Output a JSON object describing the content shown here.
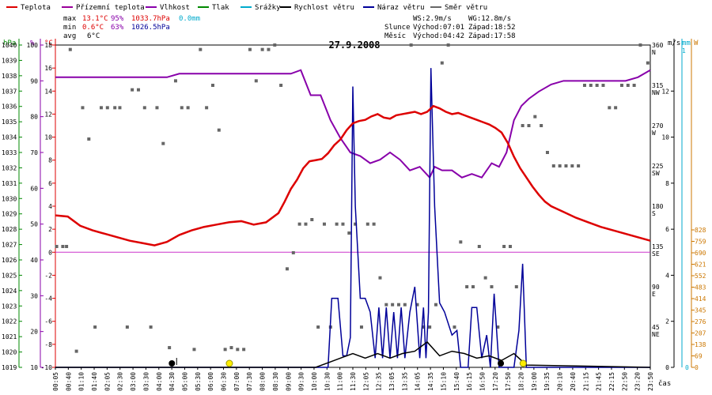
{
  "legend": [
    {
      "label": "Teplota",
      "color": "#dd0000"
    },
    {
      "label": "Přízemní teplota",
      "color": "#990099"
    },
    {
      "label": "Vlhkost",
      "color": "#8800aa"
    },
    {
      "label": "Tlak",
      "color": "#008800"
    },
    {
      "label": "Srážky",
      "color": "#00aacc"
    },
    {
      "label": "Rychlost větru",
      "color": "#000000"
    },
    {
      "label": "Náraz větru",
      "color": "#000099"
    },
    {
      "label": "Směr větru",
      "color": "#666666"
    }
  ],
  "stats": {
    "max_label": "max",
    "max_temp": "13.1°C",
    "max_hum": "95%",
    "max_press": "1033.7hPa",
    "max_rain": "0.0mm",
    "min_label": "min",
    "min_temp": "0.6°C",
    "min_hum": "63%",
    "min_press": "1026.5hPa",
    "avg_label": "avg",
    "avg_temp": "6°C"
  },
  "wind_info": {
    "ws": "WS:2.9m/s",
    "wg": "WG:12.8m/s"
  },
  "sun": {
    "label": "Slunce",
    "rise": "Východ:07:01",
    "set": "Západ:18:52"
  },
  "moon": {
    "label": "Měsíc",
    "rise": "Východ:04:42",
    "set": "Západ:17:58"
  },
  "colors": {
    "temp": "#dd0000",
    "hum": "#8800aa",
    "gust": "#000099",
    "wind": "#000000",
    "dir": "#666666",
    "press": "#008800",
    "zero": "#cc33cc",
    "rain": "#00aacc",
    "orange": "#cc7700",
    "frame": "#000000"
  },
  "chart_data": {
    "type": "line",
    "title": "27.9.2008",
    "xlabel": "čas",
    "x_range_hours": [
      0,
      24
    ],
    "x_ticks": [
      "00:05",
      "00:40",
      "01:10",
      "01:40",
      "02:05",
      "02:30",
      "03:00",
      "03:30",
      "04:00",
      "04:30",
      "05:00",
      "05:30",
      "06:00",
      "06:30",
      "07:00",
      "07:30",
      "08:00",
      "08:30",
      "09:00",
      "09:30",
      "10:00",
      "10:30",
      "11:00",
      "11:30",
      "12:05",
      "12:35",
      "13:05",
      "13:35",
      "14:05",
      "14:35",
      "15:10",
      "15:40",
      "16:15",
      "16:50",
      "17:20",
      "17:50",
      "18:20",
      "19:00",
      "19:35",
      "20:10",
      "20:40",
      "21:15",
      "21:45",
      "22:15",
      "22:50",
      "23:20",
      "23:50"
    ],
    "axes": {
      "pressure": {
        "label": "hPa",
        "range": [
          1019,
          1040
        ],
        "ticks": [
          1019,
          1020,
          1021,
          1022,
          1023,
          1024,
          1025,
          1026,
          1027,
          1028,
          1029,
          1030,
          1031,
          1032,
          1033,
          1034,
          1035,
          1036,
          1037,
          1038,
          1039,
          1040
        ]
      },
      "humidity": {
        "label": "%",
        "range": [
          10,
          100
        ],
        "ticks": [
          10,
          20,
          30,
          40,
          50,
          60,
          70,
          80,
          90,
          100
        ]
      },
      "temperature": {
        "label": "°C",
        "range": [
          -10,
          18
        ],
        "ticks": [
          -10,
          -8,
          -6,
          -4,
          -2,
          0,
          2,
          4,
          6,
          8,
          10,
          12,
          14,
          16,
          18
        ]
      },
      "direction": {
        "range": [
          0,
          360
        ],
        "ticks": [
          {
            "v": 0,
            "l": ""
          },
          {
            "v": 45,
            "l": "45",
            "c": "NE"
          },
          {
            "v": 90,
            "l": "90",
            "c": "E"
          },
          {
            "v": 135,
            "l": "135",
            "c": "SE"
          },
          {
            "v": 180,
            "l": "180",
            "c": "S"
          },
          {
            "v": 225,
            "l": "225",
            "c": "SW"
          },
          {
            "v": 270,
            "l": "270",
            "c": "W"
          },
          {
            "v": 315,
            "l": "315",
            "c": "NW"
          },
          {
            "v": 360,
            "l": "360",
            "c": "N"
          }
        ]
      },
      "wind": {
        "label": "m/s",
        "range": [
          0,
          14
        ],
        "ticks": [
          0,
          2,
          4,
          6,
          8,
          10,
          12
        ]
      },
      "rain": {
        "label": "mm",
        "ticks": [
          0,
          1
        ]
      },
      "radiation": {
        "label": "W",
        "ticks": [
          0,
          69,
          138,
          207,
          276,
          345,
          414,
          483,
          552,
          621,
          690,
          759,
          828
        ]
      }
    },
    "series": [
      {
        "name": "Teplota",
        "unit": "°C",
        "x": [
          0,
          0.5,
          1,
          1.5,
          2,
          2.5,
          3,
          3.5,
          4,
          4.5,
          5,
          5.5,
          6,
          6.5,
          7,
          7.5,
          8,
          8.5,
          9,
          9.25,
          9.5,
          9.75,
          10,
          10.25,
          10.5,
          10.75,
          11,
          11.25,
          11.5,
          11.75,
          12,
          12.25,
          12.5,
          12.75,
          13,
          13.25,
          13.5,
          13.75,
          14,
          14.25,
          14.5,
          14.75,
          15,
          15.25,
          15.5,
          15.75,
          16,
          16.25,
          16.5,
          16.75,
          17,
          17.25,
          17.5,
          17.75,
          18,
          18.25,
          18.5,
          18.75,
          19,
          19.25,
          19.5,
          19.75,
          20,
          20.5,
          21,
          21.5,
          22,
          22.5,
          23,
          23.5,
          24
        ],
        "values": [
          3.2,
          3.1,
          2.3,
          1.9,
          1.6,
          1.3,
          1.0,
          0.8,
          0.6,
          0.9,
          1.5,
          1.9,
          2.2,
          2.4,
          2.6,
          2.7,
          2.4,
          2.6,
          3.4,
          4.4,
          5.5,
          6.3,
          7.3,
          7.9,
          8.0,
          8.1,
          8.6,
          9.3,
          9.8,
          10.6,
          11.2,
          11.4,
          11.5,
          11.8,
          12.0,
          11.7,
          11.6,
          11.9,
          12.0,
          12.1,
          12.2,
          12.0,
          12.2,
          12.7,
          12.5,
          12.2,
          12.0,
          12.1,
          11.9,
          11.7,
          11.5,
          11.3,
          11.1,
          10.8,
          10.4,
          9.5,
          8.3,
          7.3,
          6.5,
          5.7,
          5.0,
          4.4,
          4.0,
          3.5,
          3.0,
          2.6,
          2.2,
          1.9,
          1.6,
          1.3,
          1.0
        ]
      },
      {
        "name": "Vlhkost",
        "unit": "%",
        "x": [
          0,
          1,
          2,
          3,
          4,
          4.5,
          5,
          6,
          7,
          8,
          9,
          9.5,
          9.9,
          10.3,
          10.7,
          11.1,
          11.5,
          11.9,
          12.3,
          12.7,
          13.1,
          13.5,
          13.9,
          14.3,
          14.7,
          15.1,
          15.3,
          15.6,
          16,
          16.4,
          16.8,
          17.2,
          17.6,
          17.9,
          18.2,
          18.5,
          18.8,
          19.1,
          19.5,
          20,
          20.5,
          21,
          21.5,
          22,
          22.5,
          23,
          23.5,
          24
        ],
        "values": [
          91,
          91,
          91,
          91,
          91,
          91,
          92,
          92,
          92,
          92,
          92,
          92,
          93,
          86,
          86,
          79,
          74,
          70,
          69,
          67,
          68,
          70,
          68,
          65,
          66,
          63,
          66,
          65,
          65,
          63,
          64,
          63,
          67,
          66,
          70,
          79,
          83,
          85,
          87,
          89,
          90,
          90,
          90,
          90,
          90,
          90,
          91,
          93
        ]
      },
      {
        "name": "Náraz větru",
        "unit": "m/s",
        "x": [
          0,
          10.45,
          10.7,
          11.0,
          11.15,
          11.4,
          11.6,
          11.75,
          11.9,
          12.0,
          12.1,
          12.3,
          12.5,
          12.7,
          12.9,
          13.05,
          13.2,
          13.35,
          13.5,
          13.65,
          13.8,
          13.95,
          14.1,
          14.3,
          14.5,
          14.7,
          14.85,
          14.95,
          15.05,
          15.15,
          15.3,
          15.5,
          15.7,
          16.0,
          16.2,
          16.35,
          16.5,
          16.65,
          16.8,
          17.0,
          17.2,
          17.4,
          17.55,
          17.7,
          17.9,
          18.1,
          18.3,
          18.5,
          18.7,
          18.85,
          19.0,
          19.15,
          19.4,
          24
        ],
        "values": [
          0,
          0,
          0,
          0,
          3.0,
          3.0,
          0.5,
          0.5,
          1.3,
          12.2,
          7.0,
          3.0,
          3.0,
          2.4,
          0.4,
          2.6,
          0.4,
          2.6,
          0.4,
          2.4,
          0.4,
          2.6,
          0.4,
          2.4,
          3.5,
          0.4,
          2.6,
          0.4,
          2.4,
          13.0,
          7.0,
          2.8,
          2.4,
          1.4,
          1.6,
          0,
          0,
          0,
          2.6,
          2.6,
          0.4,
          1.4,
          0,
          3.2,
          0,
          0,
          0,
          0,
          1.6,
          4.5,
          0,
          0,
          0,
          0
        ]
      },
      {
        "name": "Rychlost větru",
        "unit": "m/s",
        "x": [
          0,
          10.5,
          11.0,
          11.5,
          12.0,
          12.5,
          13.0,
          13.5,
          14.0,
          14.5,
          15.0,
          15.5,
          16.0,
          16.5,
          17.0,
          17.5,
          18.0,
          18.5,
          19.0,
          24
        ],
        "values": [
          0,
          0,
          0.2,
          0.4,
          0.6,
          0.4,
          0.6,
          0.4,
          0.6,
          0.7,
          1.1,
          0.5,
          0.7,
          0.6,
          0.4,
          0.5,
          0.3,
          0.6,
          0.1,
          0
        ]
      },
      {
        "name": "Směr větru",
        "unit": "deg",
        "x": [
          0.05,
          0.3,
          0.45,
          0.6,
          0.85,
          1.1,
          1.35,
          1.6,
          1.85,
          2.1,
          2.4,
          2.6,
          2.9,
          3.1,
          3.35,
          3.6,
          3.85,
          4.1,
          4.35,
          4.6,
          4.85,
          5.1,
          5.35,
          5.6,
          5.85,
          6.1,
          6.35,
          6.6,
          6.85,
          7.1,
          7.35,
          7.6,
          7.85,
          8.1,
          8.35,
          8.6,
          8.85,
          9.1,
          9.35,
          9.6,
          9.85,
          10.1,
          10.35,
          10.6,
          10.85,
          11.1,
          11.35,
          11.6,
          11.85,
          12.1,
          12.35,
          12.6,
          12.85,
          13.1,
          13.35,
          13.6,
          13.85,
          14.1,
          14.35,
          14.6,
          14.85,
          15.1,
          15.35,
          15.6,
          15.85,
          16.1,
          16.35,
          16.6,
          16.85,
          17.1,
          17.35,
          17.6,
          17.85,
          18.1,
          18.35,
          18.6,
          18.85,
          19.1,
          19.35,
          19.6,
          19.85,
          20.1,
          20.35,
          20.6,
          20.85,
          21.1,
          21.35,
          21.6,
          21.85,
          22.1,
          22.35,
          22.6,
          22.85,
          23.1,
          23.35,
          23.6,
          23.9
        ],
        "values": [
          135,
          135,
          135,
          355,
          18,
          290,
          255,
          45,
          290,
          290,
          290,
          290,
          45,
          310,
          310,
          290,
          45,
          290,
          250,
          22,
          320,
          290,
          290,
          20,
          355,
          290,
          315,
          265,
          20,
          22,
          20,
          20,
          355,
          320,
          355,
          355,
          360,
          315,
          110,
          128,
          160,
          160,
          165,
          45,
          160,
          45,
          160,
          160,
          150,
          160,
          45,
          160,
          160,
          100,
          70,
          70,
          70,
          70,
          360,
          70,
          45,
          45,
          70,
          340,
          360,
          45,
          140,
          90,
          90,
          135,
          100,
          90,
          45,
          135,
          135,
          90,
          270,
          270,
          280,
          270,
          240,
          225,
          225,
          225,
          225,
          225,
          315,
          315,
          315,
          315,
          290,
          290,
          315,
          315,
          315,
          360,
          340
        ]
      }
    ],
    "markers": {
      "moon_events": [
        4.7,
        17.97
      ],
      "sun_events": [
        7.02,
        18.87
      ]
    }
  }
}
